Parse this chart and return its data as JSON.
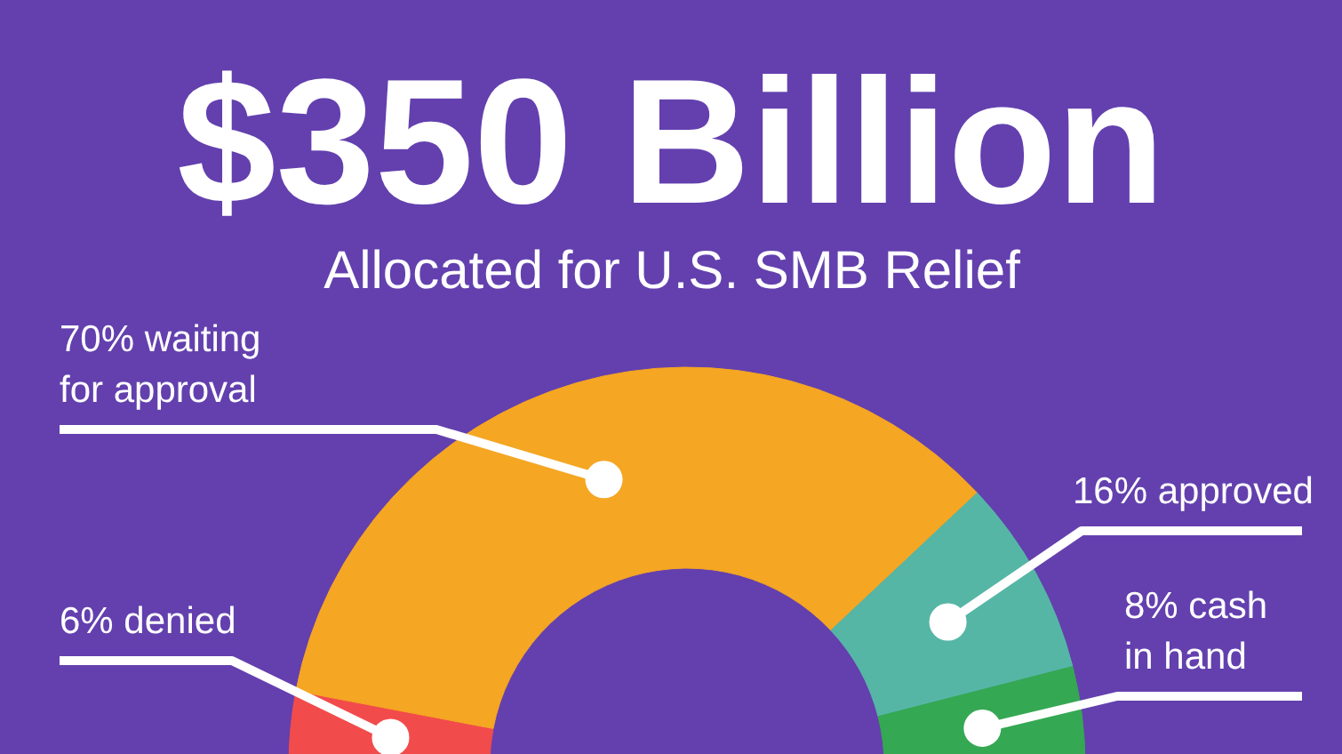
{
  "chart_data": {
    "type": "donut",
    "title": "$350 Billion",
    "subtitle": "Allocated for U.S. SMB Relief",
    "categories": [
      "denied",
      "waiting for approval",
      "approved",
      "cash in hand"
    ],
    "values": [
      6,
      70,
      16,
      8
    ],
    "value_labels": [
      "6%",
      "70%",
      "16%",
      "8%"
    ],
    "colors": [
      "#f24b4b",
      "#f5a623",
      "#56b6a6",
      "#35a853"
    ]
  }
}
